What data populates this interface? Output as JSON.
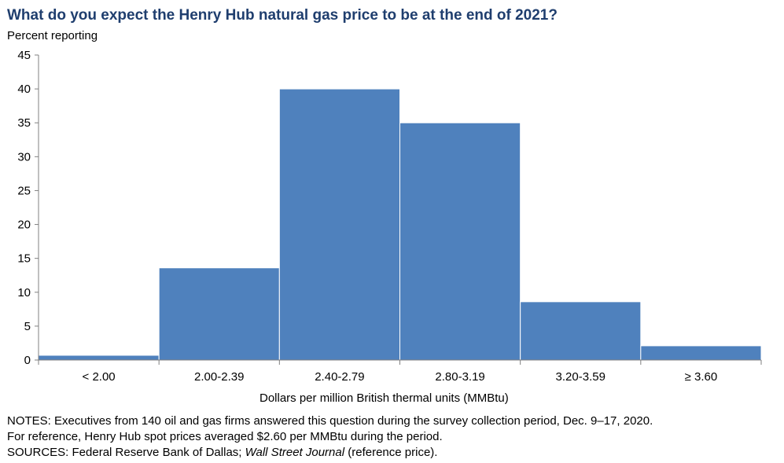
{
  "title": "What do you expect the Henry Hub natural gas price to be at the end of 2021?",
  "y_axis_caption": "Percent reporting",
  "x_axis_caption": "Dollars per million British thermal units (MMBtu)",
  "notes": {
    "line1": "NOTES: Executives from 140 oil and gas firms answered this question during the survey collection period, Dec. 9–17, 2020.",
    "line2": "For reference, Henry Hub spot prices averaged $2.60 per MMBtu during the period.",
    "sources_prefix": "SOURCES: Federal Reserve Bank of Dallas; ",
    "sources_italic": "Wall Street Journal",
    "sources_suffix": " (reference price)."
  },
  "colors": {
    "bar": "#4f81bd",
    "title": "#1f3e6e"
  },
  "chart_data": {
    "type": "bar",
    "title": "What do you expect the Henry Hub natural gas price to be at the end of 2021?",
    "xlabel": "Dollars per million British thermal units (MMBtu)",
    "ylabel": "Percent reporting",
    "categories": [
      "< 2.00",
      "2.00-2.39",
      "2.40-2.79",
      "2.80-3.19",
      "3.20-3.59",
      "≥ 3.60"
    ],
    "values": [
      0.7,
      13.6,
      40.0,
      35.0,
      8.6,
      2.1
    ],
    "ylim": [
      0,
      45
    ],
    "yticks": [
      0,
      5,
      10,
      15,
      20,
      25,
      30,
      35,
      40,
      45
    ],
    "grid": false,
    "legend": "none"
  }
}
